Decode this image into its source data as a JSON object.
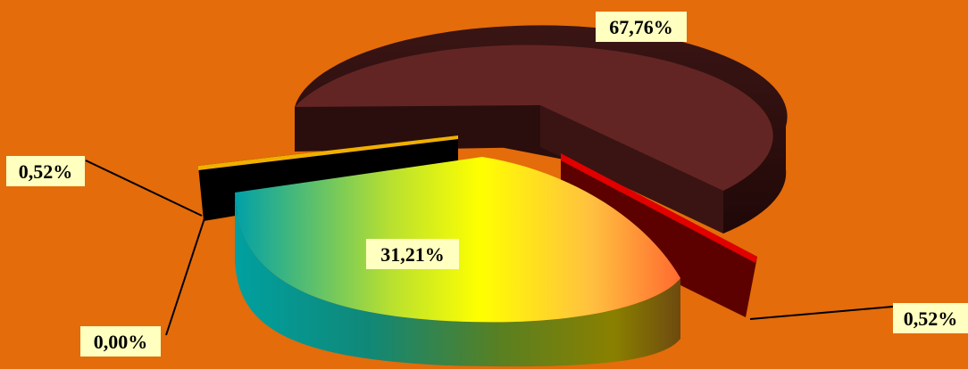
{
  "chart_data": {
    "type": "pie",
    "style": "3d-exploded",
    "background_color": "#e46c0a",
    "slices": [
      {
        "label": "67,76%",
        "value": 67.76,
        "color": "#632523"
      },
      {
        "label": "0,52%",
        "value": 0.52,
        "color": "#c00000"
      },
      {
        "label": "31,21%",
        "value": 31.21,
        "color": "gradient-yellow-teal"
      },
      {
        "label": "0,00%",
        "value": 0.0,
        "color": "#000000"
      },
      {
        "label": "0,52%",
        "value": 0.52,
        "color": "#000000"
      }
    ],
    "legend": "none",
    "grid": false
  }
}
